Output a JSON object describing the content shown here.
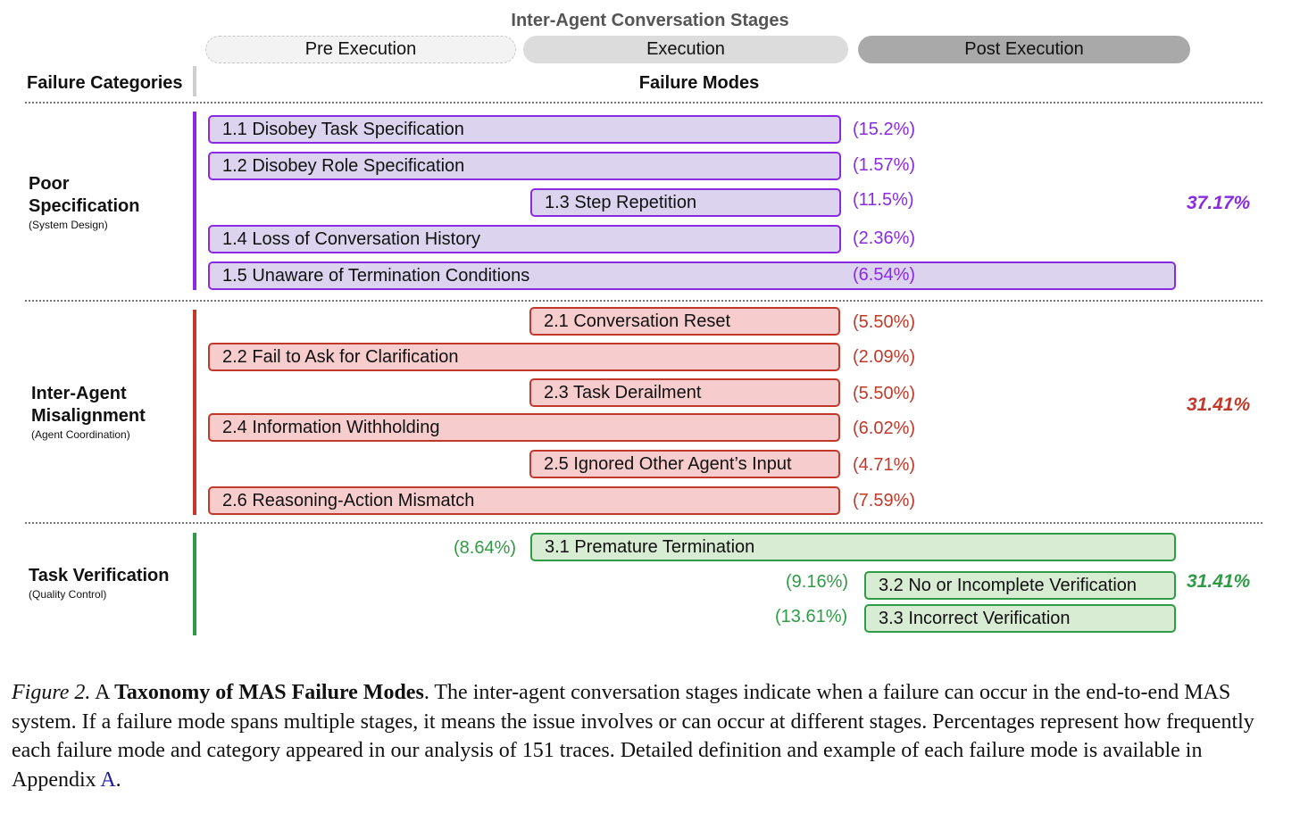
{
  "diagram": {
    "stages_title": "Inter-Agent Conversation Stages",
    "stages": {
      "pre": "Pre Execution",
      "execution": "Execution",
      "post": "Post Execution"
    },
    "headers": {
      "categories": "Failure Categories",
      "modes": "Failure Modes"
    },
    "categories": [
      {
        "name_line1": "Poor",
        "name_line2": "Specification",
        "subtitle": "(System Design)",
        "total": "37.17%",
        "color": "#8a2be2",
        "modes": [
          {
            "label": "1.1 Disobey Task Specification",
            "pct": "(15.2%)",
            "stages": [
              "Pre Execution",
              "Execution"
            ]
          },
          {
            "label": "1.2 Disobey Role Specification",
            "pct": "(1.57%)",
            "stages": [
              "Pre Execution",
              "Execution"
            ]
          },
          {
            "label": "1.3 Step Repetition",
            "pct": "(11.5%)",
            "stages": [
              "Execution"
            ]
          },
          {
            "label": "1.4 Loss of Conversation History",
            "pct": "(2.36%)",
            "stages": [
              "Pre Execution",
              "Execution"
            ]
          },
          {
            "label": "1.5 Unaware of Termination Conditions",
            "pct": "(6.54%)",
            "stages": [
              "Pre Execution",
              "Execution",
              "Post Execution"
            ]
          }
        ]
      },
      {
        "name_line1": "Inter-Agent",
        "name_line2": "Misalignment",
        "subtitle": "(Agent Coordination)",
        "total": "31.41%",
        "color": "#c0392b",
        "modes": [
          {
            "label": "2.1 Conversation Reset",
            "pct": "(5.50%)",
            "stages": [
              "Execution"
            ]
          },
          {
            "label": "2.2 Fail to Ask for Clarification",
            "pct": "(2.09%)",
            "stages": [
              "Pre Execution",
              "Execution"
            ]
          },
          {
            "label": "2.3 Task Derailment",
            "pct": "(5.50%)",
            "stages": [
              "Execution"
            ]
          },
          {
            "label": "2.4 Information Withholding",
            "pct": "(6.02%)",
            "stages": [
              "Pre Execution",
              "Execution"
            ]
          },
          {
            "label": "2.5 Ignored Other Agent’s Input",
            "pct": "(4.71%)",
            "stages": [
              "Execution"
            ]
          },
          {
            "label": "2.6 Reasoning-Action Mismatch",
            "pct": "(7.59%)",
            "stages": [
              "Pre Execution",
              "Execution"
            ]
          }
        ]
      },
      {
        "name_line1": "Task Verification",
        "subtitle": "(Quality Control)",
        "total": "31.41%",
        "color": "#2f9b45",
        "modes": [
          {
            "label": "3.1  Premature Termination",
            "pct": "(8.64%)",
            "stages": [
              "Execution",
              "Post Execution"
            ]
          },
          {
            "label": "3.2 No or Incomplete Verification",
            "pct": "(9.16%)",
            "stages": [
              "Post Execution"
            ]
          },
          {
            "label": "3.3 Incorrect Verification",
            "pct": "(13.61%)",
            "stages": [
              "Post Execution"
            ]
          }
        ]
      }
    ]
  },
  "caption": {
    "label": "Figure 2.",
    "title_prefix": " A ",
    "title": "Taxonomy of MAS Failure Modes",
    "body": ". The inter-agent conversation stages indicate when a failure can occur in the end-to-end MAS system. If a failure mode spans multiple stages, it means the issue involves or can occur at different stages. Percentages represent how frequently each failure mode and category appeared in our analysis of 151 traces. Detailed definition and example of each failure mode is available in Appendix ",
    "link": "A",
    "end": "."
  }
}
